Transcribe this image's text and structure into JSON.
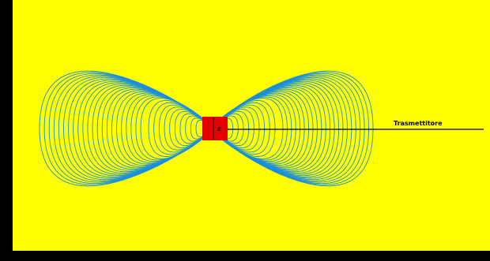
{
  "diagram": {
    "label": "Trasmettitore",
    "transmitter_symbol": "z",
    "colors": {
      "background": "#ffff00",
      "frame": "#000000",
      "field_lines": "#1a8fdc",
      "transmitter": "#e40000",
      "leader_line": "#000000",
      "label": "#000000"
    }
  }
}
